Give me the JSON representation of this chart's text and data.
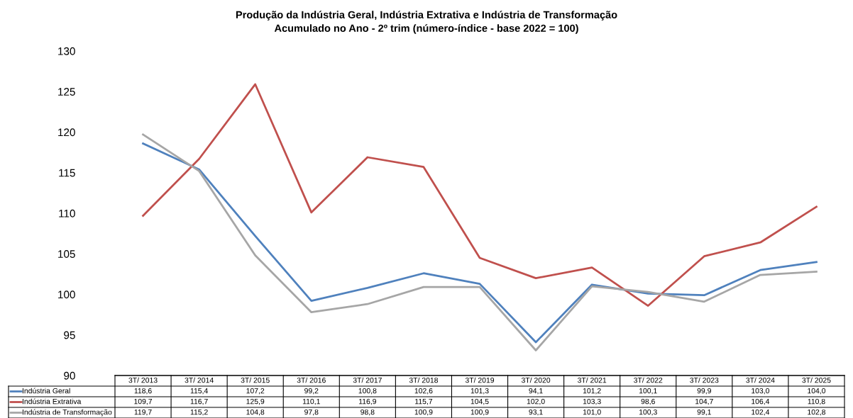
{
  "chart_data": {
    "type": "line",
    "title": "Produção da Indústria Geral, Indústria Extrativa e Indústria de Transformação",
    "subtitle": "Acumulado no Ano - 2º trim (número-índice - base 2022 = 100)",
    "categories": [
      "3T/ 2013",
      "3T/ 2014",
      "3T/ 2015",
      "3T/ 2016",
      "3T/ 2017",
      "3T/ 2018",
      "3T/ 2019",
      "3T/ 2020",
      "3T/ 2021",
      "3T/ 2022",
      "3T/ 2023",
      "3T/ 2024",
      "3T/ 2025"
    ],
    "series": [
      {
        "name": "Indústria Geral",
        "color": "#4f81bd",
        "values": [
          118.6,
          115.4,
          107.2,
          99.2,
          100.8,
          102.6,
          101.3,
          94.1,
          101.2,
          100.1,
          99.9,
          103.0,
          104.0
        ],
        "value_labels": [
          "118,6",
          "115,4",
          "107,2",
          "99,2",
          "100,8",
          "102,6",
          "101,3",
          "94,1",
          "101,2",
          "100,1",
          "99,9",
          "103,0",
          "104,0"
        ]
      },
      {
        "name": "Indústria Extrativa",
        "color": "#c0504d",
        "values": [
          109.7,
          116.7,
          125.9,
          110.1,
          116.9,
          115.7,
          104.5,
          102.0,
          103.3,
          98.6,
          104.7,
          106.4,
          110.8
        ],
        "value_labels": [
          "109,7",
          "116,7",
          "125,9",
          "110,1",
          "116,9",
          "115,7",
          "104,5",
          "102,0",
          "103,3",
          "98,6",
          "104,7",
          "106,4",
          "110,8"
        ]
      },
      {
        "name": "Indústria de Transformação",
        "color": "#a6a6a6",
        "values": [
          119.7,
          115.2,
          104.8,
          97.8,
          98.8,
          100.9,
          100.9,
          93.1,
          101.0,
          100.3,
          99.1,
          102.4,
          102.8
        ],
        "value_labels": [
          "119,7",
          "115,2",
          "104,8",
          "97,8",
          "98,8",
          "100,9",
          "100,9",
          "93,1",
          "101,0",
          "100,3",
          "99,1",
          "102,4",
          "102,8"
        ]
      }
    ],
    "ylim": [
      90,
      130
    ],
    "yticks": [
      90,
      95,
      100,
      105,
      110,
      115,
      120,
      125,
      130
    ],
    "grid": false,
    "marker": "none",
    "line_style": "solid",
    "legend": "bottom left"
  }
}
